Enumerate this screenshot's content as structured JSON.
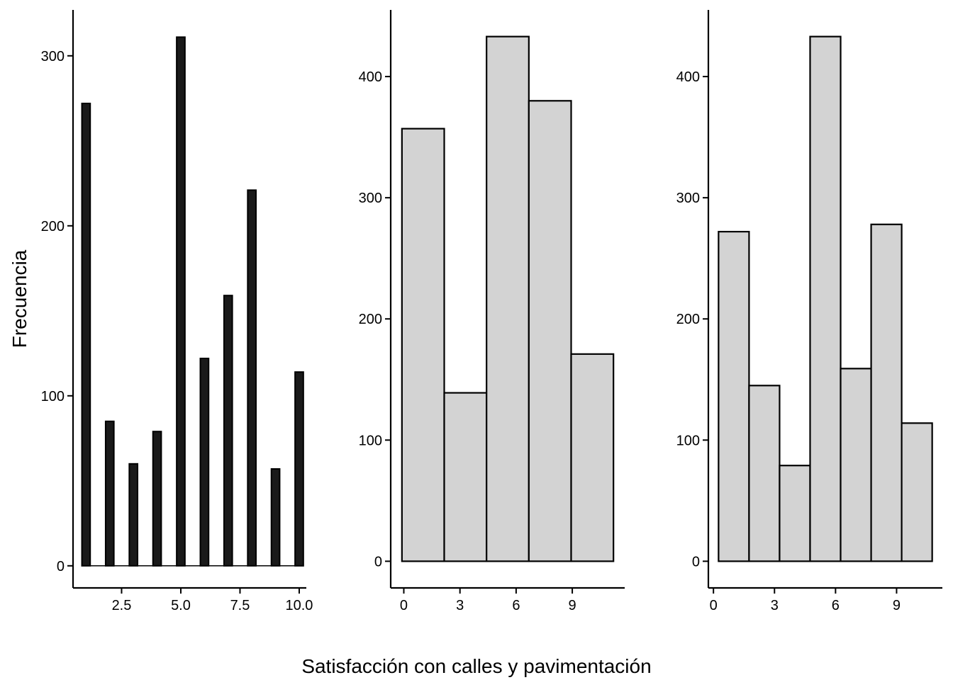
{
  "figure": {
    "ylabel": "Frecuencia",
    "xlabel": "Satisfacción con calles y pavimentación"
  },
  "chart_data": [
    {
      "type": "bar",
      "style": "thin dark bars",
      "bar_color": "#1a1a1a",
      "edge_color": "#000000",
      "x": [
        1,
        2,
        3,
        4,
        5,
        6,
        7,
        8,
        9,
        10
      ],
      "values": [
        272,
        85,
        60,
        79,
        311,
        122,
        159,
        221,
        57,
        114
      ],
      "xlim": [
        0.45,
        10.3
      ],
      "ylim": [
        -13,
        327
      ],
      "xticks": [
        2.5,
        5.0,
        7.5,
        10.0
      ],
      "xtick_labels": [
        "2.5",
        "5.0",
        "7.5",
        "10.0"
      ],
      "yticks": [
        0,
        100,
        200,
        300
      ],
      "ytick_labels": [
        "0",
        "100",
        "200",
        "300"
      ],
      "bar_width": 0.35
    },
    {
      "type": "bar",
      "style": "histogram",
      "bar_color": "#d3d3d3",
      "edge_color": "#000000",
      "bins": [
        [
          -0.1,
          2.16
        ],
        [
          2.16,
          4.42
        ],
        [
          4.42,
          6.68
        ],
        [
          6.68,
          8.94
        ],
        [
          8.94,
          11.2
        ]
      ],
      "values": [
        357,
        139,
        433,
        380,
        171
      ],
      "xlim": [
        -0.7,
        11.8
      ],
      "ylim": [
        -22,
        455
      ],
      "xticks": [
        0,
        3,
        6,
        9
      ],
      "xtick_labels": [
        "0",
        "3",
        "6",
        "9"
      ],
      "yticks": [
        0,
        100,
        200,
        300,
        400
      ],
      "ytick_labels": [
        "0",
        "100",
        "200",
        "300",
        "400"
      ]
    },
    {
      "type": "bar",
      "style": "histogram",
      "bar_color": "#d3d3d3",
      "edge_color": "#000000",
      "bins": [
        [
          0.25,
          1.75
        ],
        [
          1.75,
          3.25
        ],
        [
          3.25,
          4.75
        ],
        [
          4.75,
          6.25
        ],
        [
          6.25,
          7.75
        ],
        [
          7.75,
          9.25
        ],
        [
          9.25,
          10.75
        ]
      ],
      "values": [
        272,
        145,
        79,
        433,
        159,
        278,
        114
      ],
      "xlim": [
        -0.25,
        11.25
      ],
      "ylim": [
        -22,
        455
      ],
      "xticks": [
        0,
        3,
        6,
        9
      ],
      "xtick_labels": [
        "0",
        "3",
        "6",
        "9"
      ],
      "yticks": [
        0,
        100,
        200,
        300,
        400
      ],
      "ytick_labels": [
        "0",
        "100",
        "200",
        "300",
        "400"
      ]
    }
  ]
}
